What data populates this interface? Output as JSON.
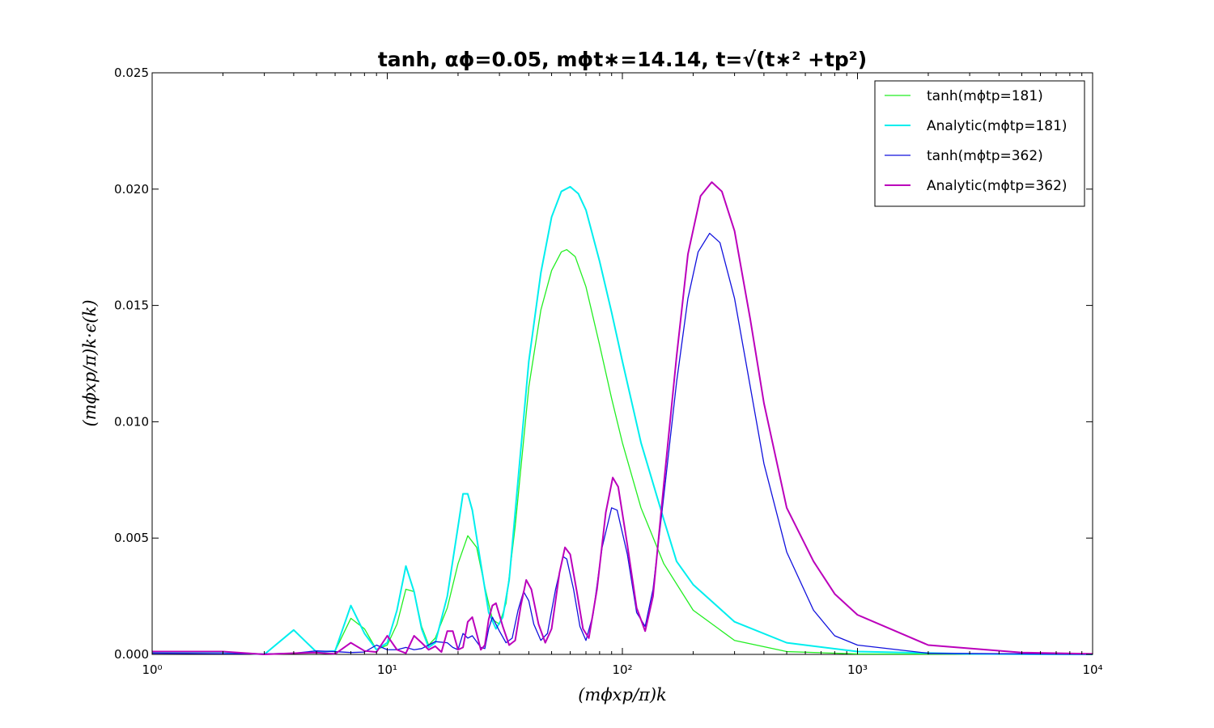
{
  "chart_data": {
    "type": "line",
    "title": "tanh, αϕ=0.05, mϕt∗=14.14, t=√(t∗² +tp²)",
    "xlabel": "(mϕxp/π)k",
    "ylabel": "(mϕxp/π)k·ϵ(k)",
    "xscale": "log",
    "xlim": [
      1,
      10000
    ],
    "ylim": [
      0,
      0.025
    ],
    "grid": false,
    "legend_position": "top-right",
    "x_ticks": [
      {
        "value": 1,
        "label": "10⁰"
      },
      {
        "value": 10,
        "label": "10¹"
      },
      {
        "value": 100,
        "label": "10²"
      },
      {
        "value": 1000,
        "label": "10³"
      },
      {
        "value": 10000,
        "label": "10⁴"
      }
    ],
    "y_ticks": [
      {
        "value": 0,
        "label": "0.000"
      },
      {
        "value": 0.005,
        "label": "0.005"
      },
      {
        "value": 0.01,
        "label": "0.010"
      },
      {
        "value": 0.015,
        "label": "0.015"
      },
      {
        "value": 0.02,
        "label": "0.020"
      },
      {
        "value": 0.025,
        "label": "0.025"
      }
    ],
    "series": [
      {
        "name": "tanh(mϕtp=181)",
        "color": "#22ee22",
        "width": 1.3,
        "points": [
          [
            1,
            0.0001
          ],
          [
            2,
            0.0001
          ],
          [
            3,
            0.0
          ],
          [
            4,
            0.00105
          ],
          [
            5,
            0.0001
          ],
          [
            6,
            0.00015
          ],
          [
            7,
            0.00155
          ],
          [
            8,
            0.0011
          ],
          [
            9,
            0.0002
          ],
          [
            10,
            0.0004
          ],
          [
            11,
            0.0013
          ],
          [
            12,
            0.0028
          ],
          [
            13,
            0.0027
          ],
          [
            14,
            0.0012
          ],
          [
            15,
            0.0004
          ],
          [
            16,
            0.0007
          ],
          [
            18,
            0.002
          ],
          [
            20,
            0.0039
          ],
          [
            22,
            0.0051
          ],
          [
            24,
            0.0046
          ],
          [
            26,
            0.0029
          ],
          [
            28,
            0.0015
          ],
          [
            30,
            0.0013
          ],
          [
            32,
            0.0022
          ],
          [
            35,
            0.0055
          ],
          [
            40,
            0.0115
          ],
          [
            45,
            0.0148
          ],
          [
            50,
            0.0165
          ],
          [
            55,
            0.0173
          ],
          [
            58,
            0.0174
          ],
          [
            63,
            0.0171
          ],
          [
            70,
            0.0158
          ],
          [
            80,
            0.0133
          ],
          [
            90,
            0.011
          ],
          [
            100,
            0.0091
          ],
          [
            120,
            0.0063
          ],
          [
            150,
            0.0039
          ],
          [
            200,
            0.0019
          ],
          [
            300,
            0.0006
          ],
          [
            500,
            0.00012
          ],
          [
            1000,
            2e-05
          ],
          [
            10000,
            0.0
          ]
        ]
      },
      {
        "name": "Analytic(mϕtp=181)",
        "color": "#00eeee",
        "width": 2,
        "points": [
          [
            1,
            0.0001
          ],
          [
            2,
            0.0001
          ],
          [
            3,
            0.0
          ],
          [
            4,
            0.00105
          ],
          [
            5,
            0.0001
          ],
          [
            6,
            0.00015
          ],
          [
            7,
            0.0021
          ],
          [
            8,
            0.0009
          ],
          [
            9,
            0.0002
          ],
          [
            10,
            0.0005
          ],
          [
            11,
            0.0019
          ],
          [
            12,
            0.0038
          ],
          [
            13,
            0.0027
          ],
          [
            14,
            0.0011
          ],
          [
            15,
            0.0003
          ],
          [
            16,
            0.0005
          ],
          [
            18,
            0.0025
          ],
          [
            20,
            0.0055
          ],
          [
            21,
            0.0069
          ],
          [
            22,
            0.0069
          ],
          [
            23,
            0.0062
          ],
          [
            25,
            0.0039
          ],
          [
            27,
            0.0018
          ],
          [
            29,
            0.0011
          ],
          [
            31,
            0.0016
          ],
          [
            33,
            0.0032
          ],
          [
            36,
            0.0075
          ],
          [
            40,
            0.0126
          ],
          [
            45,
            0.0164
          ],
          [
            50,
            0.0188
          ],
          [
            55,
            0.0199
          ],
          [
            60,
            0.0201
          ],
          [
            65,
            0.0198
          ],
          [
            70,
            0.0191
          ],
          [
            80,
            0.0169
          ],
          [
            90,
            0.0147
          ],
          [
            100,
            0.0126
          ],
          [
            120,
            0.0091
          ],
          [
            150,
            0.0058
          ],
          [
            170,
            0.004
          ],
          [
            200,
            0.003
          ],
          [
            300,
            0.0014
          ],
          [
            500,
            0.0005
          ],
          [
            1000,
            0.00012
          ],
          [
            3000,
            2e-05
          ],
          [
            10000,
            0.0
          ]
        ]
      },
      {
        "name": "tanh(mϕtp=362)",
        "color": "#1111dd",
        "width": 1.3,
        "points": [
          [
            1,
            5e-05
          ],
          [
            3,
            2e-05
          ],
          [
            4,
            5e-05
          ],
          [
            5,
            0.00015
          ],
          [
            6,
            0.00012
          ],
          [
            7,
            8e-05
          ],
          [
            8,
            0.0001
          ],
          [
            9,
            0.0004
          ],
          [
            10,
            0.0002
          ],
          [
            11,
            0.0002
          ],
          [
            12,
            0.0003
          ],
          [
            13,
            0.0002
          ],
          [
            14,
            0.00025
          ],
          [
            15,
            0.0004
          ],
          [
            16,
            0.00055
          ],
          [
            18,
            0.0005
          ],
          [
            19,
            0.0003
          ],
          [
            20,
            0.0002
          ],
          [
            21,
            0.0009
          ],
          [
            22,
            0.0007
          ],
          [
            23,
            0.0008
          ],
          [
            25,
            0.0003
          ],
          [
            26,
            0.00025
          ],
          [
            27,
            0.0011
          ],
          [
            28,
            0.0016
          ],
          [
            30,
            0.001
          ],
          [
            32,
            0.0005
          ],
          [
            34,
            0.0007
          ],
          [
            36,
            0.0019
          ],
          [
            38,
            0.0027
          ],
          [
            40,
            0.0023
          ],
          [
            42,
            0.0013
          ],
          [
            45,
            0.0006
          ],
          [
            48,
            0.0009
          ],
          [
            52,
            0.0028
          ],
          [
            56,
            0.0042
          ],
          [
            58,
            0.0041
          ],
          [
            62,
            0.0028
          ],
          [
            66,
            0.0012
          ],
          [
            70,
            0.0006
          ],
          [
            75,
            0.0017
          ],
          [
            82,
            0.0046
          ],
          [
            90,
            0.0063
          ],
          [
            95,
            0.0062
          ],
          [
            105,
            0.0043
          ],
          [
            115,
            0.0018
          ],
          [
            125,
            0.0012
          ],
          [
            135,
            0.0028
          ],
          [
            150,
            0.0068
          ],
          [
            170,
            0.0117
          ],
          [
            190,
            0.0153
          ],
          [
            210,
            0.0173
          ],
          [
            235,
            0.0181
          ],
          [
            260,
            0.0177
          ],
          [
            300,
            0.0153
          ],
          [
            350,
            0.0115
          ],
          [
            400,
            0.0082
          ],
          [
            500,
            0.0044
          ],
          [
            650,
            0.0019
          ],
          [
            800,
            0.0008
          ],
          [
            1000,
            0.0004
          ],
          [
            2000,
            5e-05
          ],
          [
            10000,
            0.0
          ]
        ]
      },
      {
        "name": "Analytic(mϕtp=362)",
        "color": "#bb00bb",
        "width": 2,
        "points": [
          [
            1,
            0.00012
          ],
          [
            2,
            0.00012
          ],
          [
            3,
            0.0
          ],
          [
            4,
            5e-05
          ],
          [
            5,
            8e-05
          ],
          [
            6,
            2e-05
          ],
          [
            7,
            0.0005
          ],
          [
            8,
            0.00015
          ],
          [
            9,
            0.0001
          ],
          [
            10,
            0.0008
          ],
          [
            11,
            0.0002
          ],
          [
            12,
            5e-05
          ],
          [
            13,
            0.0008
          ],
          [
            14,
            0.0005
          ],
          [
            15,
            0.0002
          ],
          [
            16,
            0.00035
          ],
          [
            17,
            0.0001
          ],
          [
            18,
            0.001
          ],
          [
            19,
            0.001
          ],
          [
            20,
            0.0002
          ],
          [
            21,
            0.0003
          ],
          [
            22,
            0.0014
          ],
          [
            23,
            0.0016
          ],
          [
            24,
            0.0009
          ],
          [
            25,
            0.0002
          ],
          [
            26,
            0.0004
          ],
          [
            27,
            0.0015
          ],
          [
            28,
            0.0021
          ],
          [
            29,
            0.0022
          ],
          [
            31,
            0.0012
          ],
          [
            33,
            0.0004
          ],
          [
            35,
            0.0006
          ],
          [
            37,
            0.0021
          ],
          [
            39,
            0.0032
          ],
          [
            41,
            0.0028
          ],
          [
            44,
            0.0013
          ],
          [
            47,
            0.0005
          ],
          [
            50,
            0.0011
          ],
          [
            54,
            0.0035
          ],
          [
            57,
            0.0046
          ],
          [
            60,
            0.0043
          ],
          [
            64,
            0.0027
          ],
          [
            68,
            0.0011
          ],
          [
            72,
            0.0007
          ],
          [
            78,
            0.0028
          ],
          [
            85,
            0.0061
          ],
          [
            91,
            0.0076
          ],
          [
            96,
            0.0072
          ],
          [
            105,
            0.0047
          ],
          [
            115,
            0.002
          ],
          [
            125,
            0.001
          ],
          [
            135,
            0.0025
          ],
          [
            150,
            0.0073
          ],
          [
            170,
            0.0128
          ],
          [
            190,
            0.0172
          ],
          [
            215,
            0.0197
          ],
          [
            240,
            0.0203
          ],
          [
            265,
            0.0199
          ],
          [
            300,
            0.0182
          ],
          [
            350,
            0.0144
          ],
          [
            400,
            0.0108
          ],
          [
            500,
            0.0063
          ],
          [
            650,
            0.004
          ],
          [
            800,
            0.0026
          ],
          [
            1000,
            0.0017
          ],
          [
            2000,
            0.0004
          ],
          [
            5000,
            8e-05
          ],
          [
            10000,
            2e-05
          ]
        ]
      }
    ]
  }
}
